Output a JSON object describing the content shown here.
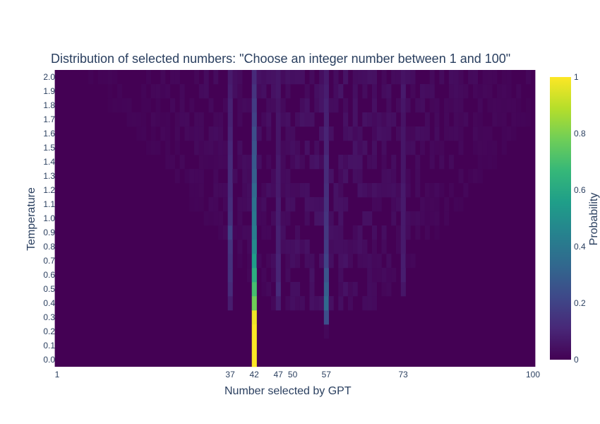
{
  "chart_data": {
    "type": "heatmap",
    "title": "Distribution of selected numbers: \"Choose an integer number between 1 and 100\"",
    "xlabel": "Number selected by GPT",
    "ylabel": "Temperature",
    "colorbar_label": "Probability",
    "xlim": [
      1,
      100
    ],
    "x_ticks": [
      1,
      37,
      42,
      47,
      50,
      57,
      73,
      100
    ],
    "y_values": [
      0.0,
      0.1,
      0.2,
      0.3,
      0.4,
      0.5,
      0.6,
      0.7,
      0.8,
      0.9,
      1.0,
      1.1,
      1.2,
      1.3,
      1.4,
      1.5,
      1.6,
      1.7,
      1.8,
      1.9,
      2.0
    ],
    "y_tick_labels": [
      "0.0",
      "0.1",
      "0.2",
      "0.3",
      "0.4",
      "0.5",
      "0.6",
      "0.7",
      "0.8",
      "0.9",
      "1.0",
      "1.1",
      "1.2",
      "1.3",
      "1.4",
      "1.5",
      "1.6",
      "1.7",
      "1.8",
      "1.9",
      "2.0"
    ],
    "colorbar_ticks": [
      0,
      0.2,
      0.4,
      0.6,
      0.8,
      1
    ],
    "colorbar_tick_labels": [
      "0",
      "0.2",
      "0.4",
      "0.6",
      "0.8",
      "1"
    ],
    "zlim": [
      0,
      1
    ],
    "colorscale": "Viridis",
    "colorscale_stops": [
      "#440154",
      "#482878",
      "#3e4989",
      "#31688e",
      "#26828e",
      "#1f9e89",
      "#35b779",
      "#6ece58",
      "#b5de2b",
      "#fde725"
    ],
    "concentrated_values": {
      "42": [
        1.0,
        1.0,
        1.0,
        0.98,
        0.78,
        0.7,
        0.62,
        0.55,
        0.48,
        0.42,
        0.4,
        0.38,
        0.34,
        0.3,
        0.28,
        0.26,
        0.24,
        0.2,
        0.18,
        0.15,
        0.12
      ],
      "57": [
        0,
        0,
        0.02,
        0.24,
        0.34,
        0.3,
        0.26,
        0.2,
        0.18,
        0.16,
        0.15,
        0.14,
        0.13,
        0.12,
        0.12,
        0.1,
        0.1,
        0.09,
        0.09,
        0.08,
        0.07
      ],
      "37": [
        0,
        0,
        0,
        0,
        0.08,
        0.12,
        0.14,
        0.14,
        0.15,
        0.2,
        0.14,
        0.13,
        0.12,
        0.12,
        0.12,
        0.11,
        0.1,
        0.09,
        0.09,
        0.08,
        0.07
      ],
      "47": [
        0,
        0,
        0,
        0,
        0.08,
        0.12,
        0.1,
        0.1,
        0.09,
        0.09,
        0.08,
        0.08,
        0.07,
        0.07,
        0.07,
        0.06,
        0.06,
        0.06,
        0.05,
        0.06,
        0.06
      ],
      "73": [
        0,
        0,
        0,
        0,
        0,
        0.06,
        0.08,
        0.08,
        0.07,
        0.07,
        0.07,
        0.07,
        0.07,
        0.06,
        0.06,
        0.06,
        0.06,
        0.05,
        0.06,
        0.07,
        0.05
      ]
    },
    "background_probability_range": [
      0,
      0.06
    ],
    "grid": false,
    "legend": "colorbar-right"
  }
}
